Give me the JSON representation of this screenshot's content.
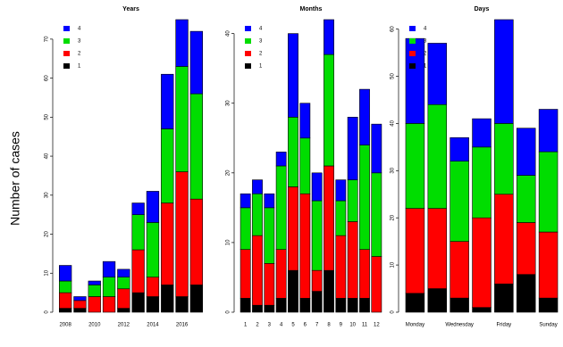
{
  "chart_data": [
    {
      "type": "bar",
      "stacked": true,
      "title": "Years",
      "ylabel": "Number of cases",
      "categories": [
        "2008",
        null,
        "2010",
        null,
        "2012",
        null,
        "2014",
        null,
        "2016",
        null
      ],
      "ylim": [
        0,
        75
      ],
      "yticks": [
        0,
        10,
        20,
        30,
        40,
        50,
        60,
        70
      ],
      "legend": "top-left",
      "series": [
        {
          "name": "1",
          "color": "#000000",
          "values": [
            1,
            1,
            0,
            0,
            1,
            5,
            4,
            7,
            4,
            7
          ]
        },
        {
          "name": "2",
          "color": "#ff0000",
          "values": [
            4,
            2,
            4,
            4,
            5,
            11,
            5,
            21,
            32,
            22
          ]
        },
        {
          "name": "3",
          "color": "#00dd00",
          "values": [
            3,
            0,
            3,
            5,
            3,
            9,
            14,
            19,
            27,
            27
          ]
        },
        {
          "name": "4",
          "color": "#0000ff",
          "values": [
            4,
            1,
            1,
            4,
            2,
            3,
            8,
            14,
            12,
            16
          ]
        }
      ]
    },
    {
      "type": "bar",
      "stacked": true,
      "title": "Months",
      "categories": [
        "1",
        "2",
        "3",
        "4",
        "5",
        "6",
        "7",
        "8",
        "9",
        "10",
        "11",
        "12"
      ],
      "ylim": [
        0,
        42
      ],
      "yticks": [
        0,
        10,
        20,
        30,
        40
      ],
      "legend": "top-left",
      "series": [
        {
          "name": "1",
          "color": "#000000",
          "values": [
            2,
            1,
            1,
            2,
            6,
            2,
            3,
            6,
            2,
            2,
            2,
            0
          ]
        },
        {
          "name": "2",
          "color": "#ff0000",
          "values": [
            7,
            10,
            6,
            7,
            12,
            15,
            3,
            15,
            9,
            11,
            7,
            8
          ]
        },
        {
          "name": "3",
          "color": "#00dd00",
          "values": [
            6,
            6,
            8,
            12,
            10,
            8,
            10,
            16,
            5,
            6,
            15,
            12
          ]
        },
        {
          "name": "4",
          "color": "#0000ff",
          "values": [
            2,
            2,
            2,
            2,
            12,
            5,
            4,
            5,
            3,
            9,
            8,
            7
          ]
        }
      ]
    },
    {
      "type": "bar",
      "stacked": true,
      "title": "Days",
      "categories": [
        "Monday",
        null,
        "Wednesday",
        null,
        "Friday",
        null,
        "Sunday"
      ],
      "ylim": [
        0,
        62
      ],
      "yticks": [
        0,
        10,
        20,
        30,
        40,
        50,
        60
      ],
      "legend": "top-left",
      "series": [
        {
          "name": "1",
          "color": "#000000",
          "values": [
            4,
            5,
            3,
            1,
            6,
            8,
            3
          ]
        },
        {
          "name": "2",
          "color": "#ff0000",
          "values": [
            18,
            17,
            12,
            19,
            19,
            11,
            14
          ]
        },
        {
          "name": "3",
          "color": "#00dd00",
          "values": [
            18,
            22,
            17,
            15,
            15,
            10,
            17
          ]
        },
        {
          "name": "4",
          "color": "#0000ff",
          "values": [
            18,
            13,
            5,
            6,
            22,
            10,
            9
          ]
        }
      ]
    }
  ]
}
